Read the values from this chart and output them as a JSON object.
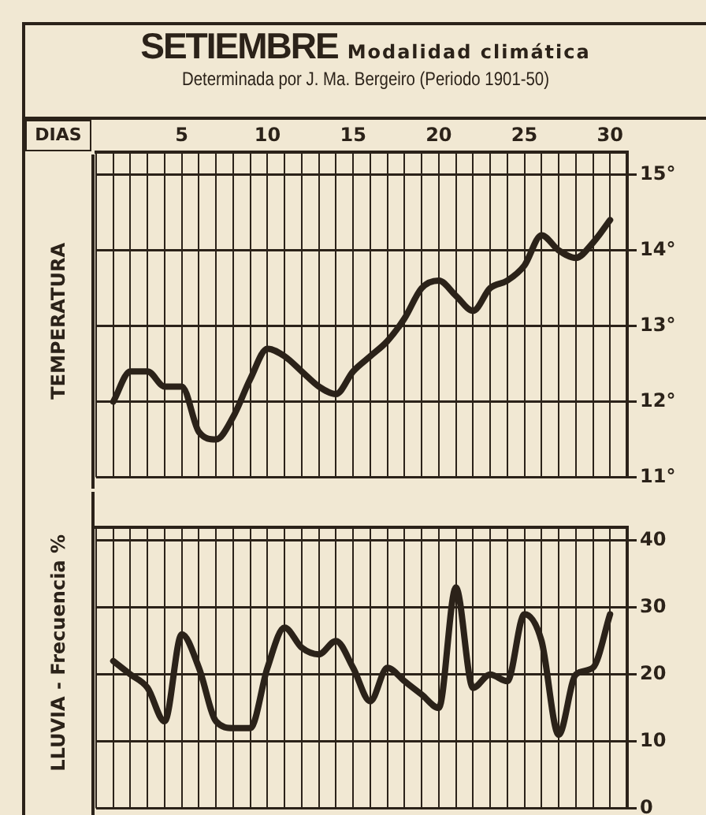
{
  "chart_data": [
    {
      "type": "line",
      "title": "SETIEMBRE",
      "subtitle": "Modalidad climática",
      "annotations": [
        "Determinada por J. Ma. Bergeiro (Periodo 1901-50)"
      ],
      "xlabel": "DIAS",
      "ylabel": "TEMPERATURA",
      "x": [
        1,
        2,
        3,
        4,
        5,
        6,
        7,
        8,
        9,
        10,
        11,
        12,
        13,
        14,
        15,
        16,
        17,
        18,
        19,
        20,
        21,
        22,
        23,
        24,
        25,
        26,
        27,
        28,
        29,
        30
      ],
      "series": [
        {
          "color": "#2b2219",
          "values": [
            12.0,
            12.4,
            12.4,
            12.2,
            12.2,
            11.6,
            11.5,
            11.8,
            12.3,
            12.7,
            12.6,
            12.4,
            12.2,
            12.1,
            12.4,
            12.6,
            12.8,
            13.1,
            13.5,
            13.6,
            13.4,
            13.2,
            13.5,
            13.6,
            13.8,
            14.2,
            14.0,
            13.9,
            14.1,
            14.4
          ]
        }
      ],
      "xlim": [
        0,
        31
      ],
      "xticks": [
        {
          "value": 0,
          "label": null
        },
        {
          "value": 1,
          "label": null
        },
        {
          "value": 2,
          "label": null
        },
        {
          "value": 3,
          "label": null
        },
        {
          "value": 4,
          "label": null
        },
        5,
        {
          "value": 6,
          "label": null
        },
        {
          "value": 7,
          "label": null
        },
        {
          "value": 8,
          "label": null
        },
        {
          "value": 9,
          "label": null
        },
        10,
        {
          "value": 11,
          "label": null
        },
        {
          "value": 12,
          "label": null
        },
        {
          "value": 13,
          "label": null
        },
        {
          "value": 14,
          "label": null
        },
        15,
        {
          "value": 16,
          "label": null
        },
        {
          "value": 17,
          "label": null
        },
        {
          "value": 18,
          "label": null
        },
        {
          "value": 19,
          "label": null
        },
        20,
        {
          "value": 21,
          "label": null
        },
        {
          "value": 22,
          "label": null
        },
        {
          "value": 23,
          "label": null
        },
        {
          "value": 24,
          "label": null
        },
        25,
        {
          "value": 26,
          "label": null
        },
        {
          "value": 27,
          "label": null
        },
        {
          "value": 28,
          "label": null
        },
        {
          "value": 29,
          "label": null
        },
        30,
        {
          "value": 31,
          "label": null
        }
      ],
      "ylim": [
        11,
        15.3
      ],
      "yticks": [
        {
          "value": 11,
          "label": "11°"
        },
        {
          "value": 12,
          "label": "12°"
        },
        {
          "value": 13,
          "label": "13°"
        },
        {
          "value": 14,
          "label": "14°"
        },
        {
          "value": 15,
          "label": "15°"
        }
      ],
      "grid": true,
      "marker": "none",
      "line_style": "solid"
    },
    {
      "type": "line",
      "ylabel": "LLUVIA - Frecuencia %",
      "x": [
        1,
        2,
        3,
        4,
        5,
        6,
        7,
        8,
        9,
        10,
        11,
        12,
        13,
        14,
        15,
        16,
        17,
        18,
        19,
        20,
        21,
        22,
        23,
        24,
        25,
        26,
        27,
        28,
        29,
        30
      ],
      "series": [
        {
          "color": "#2b2219",
          "values": [
            22,
            20,
            18,
            13,
            26,
            21,
            13,
            12,
            12,
            21,
            27,
            24,
            23,
            25,
            21,
            16,
            21,
            19,
            17,
            15,
            33,
            18,
            20,
            19,
            29,
            25,
            11,
            20,
            21,
            29
          ]
        }
      ],
      "xlim": [
        0,
        31
      ],
      "xticks": [
        {
          "value": 0,
          "label": null
        },
        {
          "value": 1,
          "label": null
        },
        {
          "value": 2,
          "label": null
        },
        {
          "value": 3,
          "label": null
        },
        {
          "value": 4,
          "label": null
        },
        5,
        {
          "value": 6,
          "label": null
        },
        {
          "value": 7,
          "label": null
        },
        {
          "value": 8,
          "label": null
        },
        {
          "value": 9,
          "label": null
        },
        10,
        {
          "value": 11,
          "label": null
        },
        {
          "value": 12,
          "label": null
        },
        {
          "value": 13,
          "label": null
        },
        {
          "value": 14,
          "label": null
        },
        15,
        {
          "value": 16,
          "label": null
        },
        {
          "value": 17,
          "label": null
        },
        {
          "value": 18,
          "label": null
        },
        {
          "value": 19,
          "label": null
        },
        20,
        {
          "value": 21,
          "label": null
        },
        {
          "value": 22,
          "label": null
        },
        {
          "value": 23,
          "label": null
        },
        {
          "value": 24,
          "label": null
        },
        25,
        {
          "value": 26,
          "label": null
        },
        {
          "value": 27,
          "label": null
        },
        {
          "value": 28,
          "label": null
        },
        {
          "value": 29,
          "label": null
        },
        30,
        {
          "value": 31,
          "label": null
        }
      ],
      "ylim": [
        0,
        42
      ],
      "yticks": [
        0,
        10,
        20,
        30,
        40
      ],
      "tick_labels": "y",
      "grid": true,
      "marker": "none",
      "line_style": "solid"
    }
  ]
}
